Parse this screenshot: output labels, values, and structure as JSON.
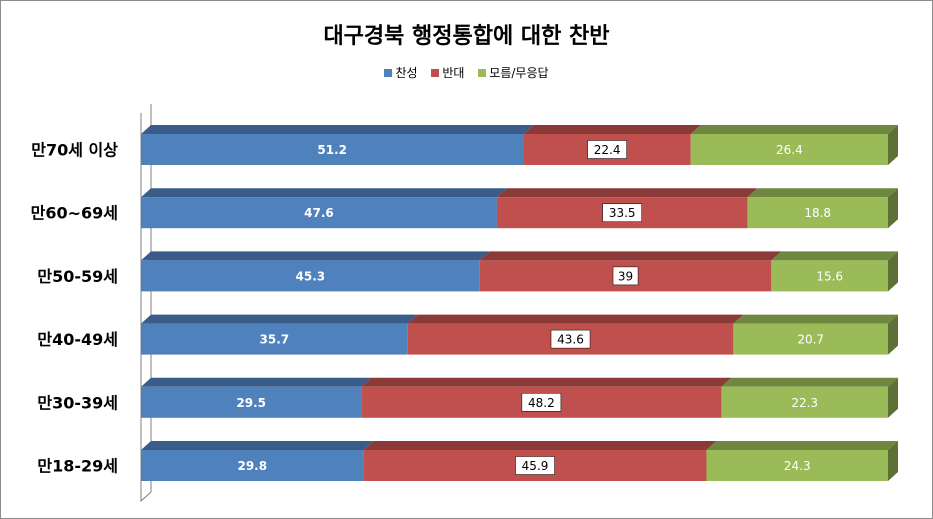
{
  "chart_data": {
    "type": "bar",
    "orientation": "horizontal",
    "stacked": true,
    "percent_stacked": true,
    "style": "3d",
    "title": "대구경북 행정통합에 대한 찬반",
    "legend_position": "top",
    "categories": [
      "만70세 이상",
      "만60~69세",
      "만50-59세",
      "만40-49세",
      "만30-39세",
      "만18-29세"
    ],
    "series": [
      {
        "name": "찬성",
        "color": "#4f81bd",
        "values": [
          51.2,
          47.6,
          45.3,
          35.7,
          29.5,
          29.8
        ]
      },
      {
        "name": "반대",
        "color": "#c0504d",
        "values": [
          22.4,
          33.5,
          39,
          43.6,
          48.2,
          45.9
        ]
      },
      {
        "name": "모름/무응답",
        "color": "#9bbb59",
        "values": [
          26.4,
          18.8,
          15.6,
          20.7,
          22.3,
          24.3
        ]
      }
    ],
    "data_labels": {
      "찬성": [
        "51.2",
        "47.6",
        "45.3",
        "35.7",
        "29.5",
        "29.8"
      ],
      "반대": [
        "22.4",
        "33.5",
        "39",
        "43.6",
        "48.2",
        "45.9"
      ],
      "모름/무응답": [
        "26.4",
        "18.8",
        "15.6",
        "20.7",
        "22.3",
        "24.3"
      ]
    },
    "grid": false
  }
}
